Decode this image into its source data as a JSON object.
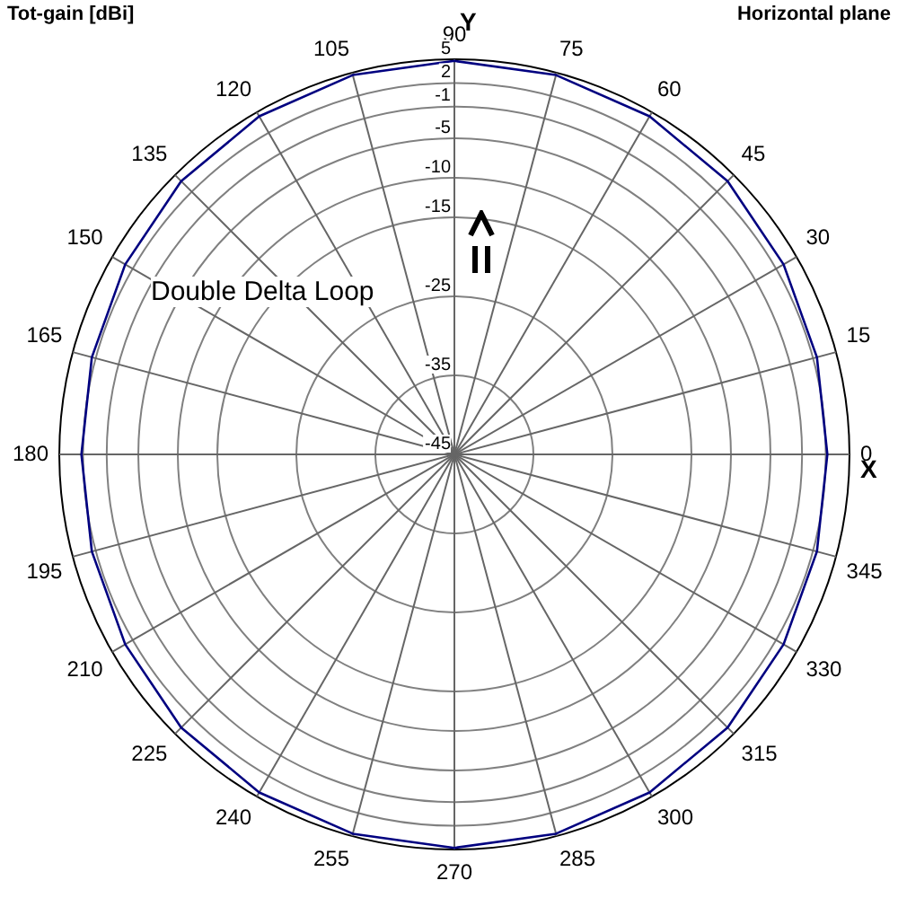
{
  "chart_data": {
    "type": "radar",
    "title": "Horizontal plane",
    "ylabel": "Tot-gain [dBi]",
    "annotations": [
      "Double Delta Loop",
      "X",
      "Y"
    ],
    "categories": [
      "90",
      "75",
      "60",
      "45",
      "30",
      "15",
      "0",
      "345",
      "330",
      "315",
      "300",
      "285",
      "270",
      "255",
      "240",
      "225",
      "210",
      "195",
      "180",
      "165",
      "150",
      "135",
      "120",
      "105"
    ],
    "series": [
      {
        "color": "#000080",
        "values": [
          4.8,
          4.7,
          4.4,
          3.9,
          3.1,
          2.5,
          2.2,
          2.5,
          3.1,
          3.9,
          4.4,
          4.7,
          4.8,
          4.7,
          4.4,
          3.9,
          3.1,
          2.5,
          2.2,
          2.5,
          3.1,
          3.9,
          4.4,
          4.7
        ]
      }
    ],
    "ylim": [
      -45,
      5
    ],
    "yticks": [
      5,
      2,
      -1,
      -5,
      -10,
      -15,
      -25,
      -35,
      -45
    ],
    "grid": true,
    "legend": false,
    "marker": "none",
    "line_style": "solid"
  }
}
